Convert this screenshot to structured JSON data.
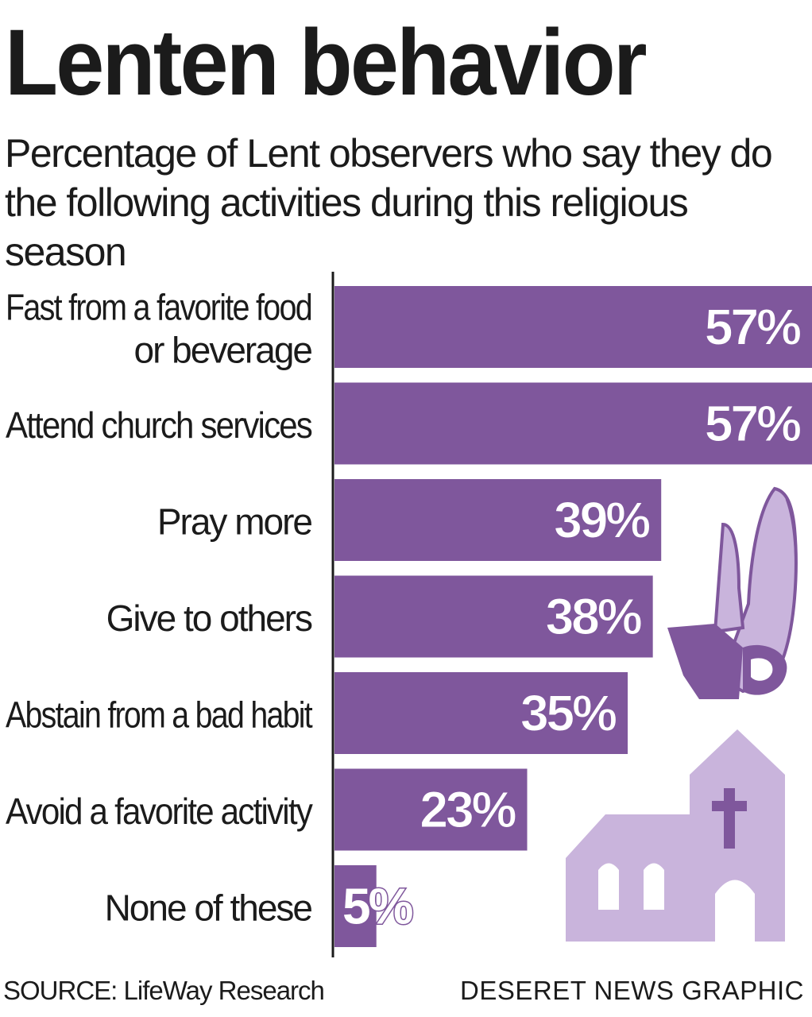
{
  "title": "Lenten behavior",
  "subtitle": "Percentage of Lent observers who say they do the following activities during this religious season",
  "source": "SOURCE: LifeWay Research",
  "credit": "DESERET NEWS GRAPHIC",
  "colors": {
    "bar": "#7f579c",
    "illustration_light": "#c9b4dc",
    "illustration_dark": "#7f579c",
    "text": "#1b1b1b",
    "value_text": "#ffffff"
  },
  "illustrations": [
    "praying-hands-icon",
    "church-icon"
  ],
  "chart_data": {
    "type": "bar",
    "orientation": "horizontal",
    "categories": [
      [
        "Fast from a favorite food",
        "or beverage"
      ],
      [
        "Attend church services"
      ],
      [
        "Pray more"
      ],
      [
        "Give to others"
      ],
      [
        "Abstain from a bad habit"
      ],
      [
        "Avoid a favorite activity"
      ],
      [
        "None of these"
      ]
    ],
    "values": [
      57,
      57,
      39,
      38,
      35,
      23,
      5
    ],
    "value_labels": [
      "57%",
      "57%",
      "39%",
      "38%",
      "35%",
      "23%",
      "5%"
    ],
    "xlim": [
      0,
      57
    ],
    "grid": false,
    "legend": "none"
  }
}
